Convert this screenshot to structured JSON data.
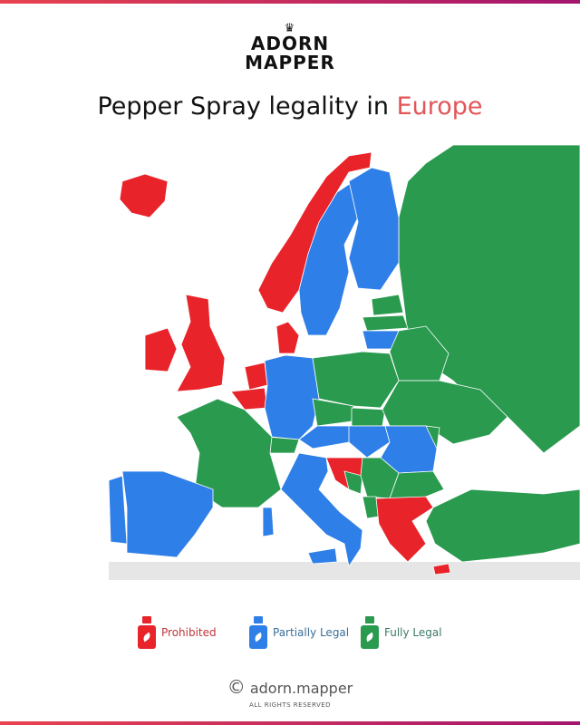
{
  "logo": {
    "line1": "ADORN",
    "line2": "MAPPER",
    "icon": "crown-icon"
  },
  "title": {
    "prefix": "Pepper Spray legality in ",
    "highlight": "Europe"
  },
  "colors": {
    "prohibited": "#e8232a",
    "partial": "#2f7fe8",
    "full": "#2a9a4f",
    "accent": "#e25558",
    "non_europe": "#e6e6e6"
  },
  "legend": [
    {
      "label": "Prohibited",
      "color": "#e8232a",
      "icon": "pepper-spray-icon"
    },
    {
      "label": "Partially Legal",
      "color": "#2f7fe8",
      "icon": "pepper-spray-icon"
    },
    {
      "label": "Fully Legal",
      "color": "#2a9a4f",
      "icon": "pepper-spray-icon"
    }
  ],
  "countries": {
    "Iceland": "prohibited",
    "Norway": "prohibited",
    "United Kingdom": "prohibited",
    "Ireland": "prohibited",
    "Denmark": "prohibited",
    "Netherlands": "prohibited",
    "Belgium": "prohibited",
    "Croatia": "prohibited",
    "Greece": "prohibited",
    "Cyprus": "prohibited",
    "Sweden": "partial",
    "Finland": "partial",
    "Germany": "partial",
    "Spain": "partial",
    "Portugal": "partial",
    "Italy": "partial",
    "Lithuania": "partial",
    "Hungary": "partial",
    "Romania": "partial",
    "Austria": "partial",
    "Russia": "full",
    "France": "full",
    "Poland": "full",
    "Ukraine": "full",
    "Belarus": "full",
    "Estonia": "full",
    "Latvia": "full",
    "Czechia": "full",
    "Slovakia": "full",
    "Switzerland": "full",
    "Serbia": "full",
    "Bulgaria": "full",
    "Bosnia": "full",
    "Turkey": "full",
    "Moldova": "full",
    "Albania": "full"
  },
  "footer": {
    "handle": "adorn.mapper",
    "rights": "ALL RIGHTS RESERVED",
    "icon": "copyright-icon"
  }
}
